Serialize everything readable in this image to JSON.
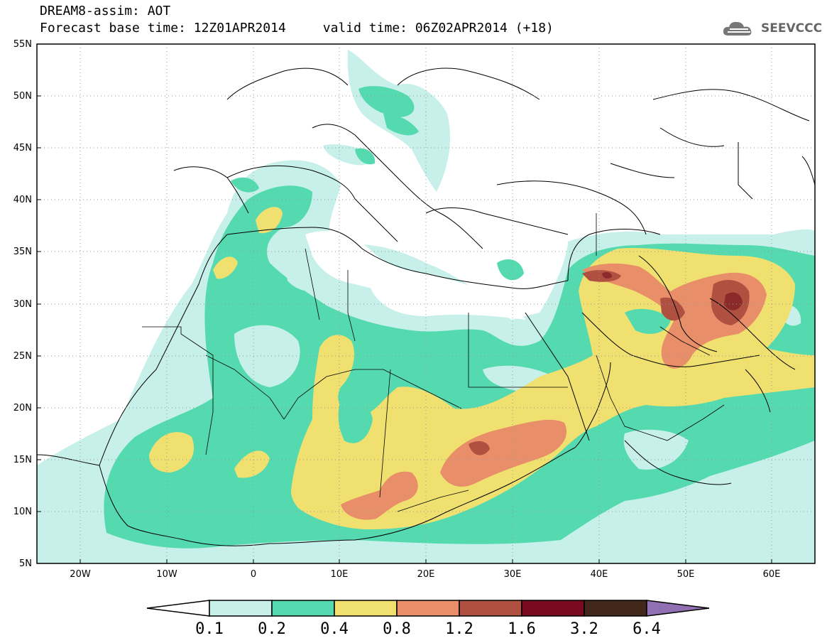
{
  "title": {
    "line1": "DREAM8-assim: AOT",
    "base_time": "Forecast base time: 12Z01APR2014",
    "valid_time": "valid time: 06Z02APR2014 (+18)"
  },
  "logo": {
    "text": "SEEVCCC",
    "icon": "cloud-icon"
  },
  "map": {
    "lon_range": [
      -25,
      65
    ],
    "lat_range": [
      5,
      55
    ],
    "x_ticks": [
      "20W",
      "10W",
      "0",
      "10E",
      "20E",
      "30E",
      "40E",
      "50E",
      "60E"
    ],
    "y_ticks": [
      "55N",
      "50N",
      "45N",
      "40N",
      "35N",
      "30N",
      "25N",
      "20N",
      "15N",
      "10N",
      "5N"
    ]
  },
  "legend": {
    "bins": [
      {
        "lo": "0.1",
        "color": "#c8f0ea"
      },
      {
        "lo": "0.2",
        "color": "#55dab0"
      },
      {
        "lo": "0.4",
        "color": "#f0e070"
      },
      {
        "lo": "0.8",
        "color": "#e88e68"
      },
      {
        "lo": "1.2",
        "color": "#b05040"
      },
      {
        "lo": "1.6",
        "color": "#7a0a20"
      },
      {
        "lo": "3.2",
        "color": "#42281a"
      }
    ],
    "labels": [
      "0.1",
      "0.2",
      "0.4",
      "0.8",
      "1.2",
      "1.6",
      "3.2",
      "6.4"
    ],
    "over_color": "#9070b0",
    "under_color": "#ffffff"
  }
}
